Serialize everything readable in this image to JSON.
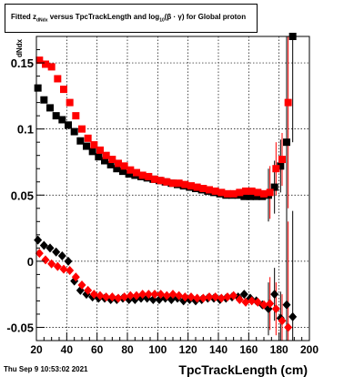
{
  "title": {
    "prefix": "Fitted  z",
    "sub1": "dNdx",
    "middle": "  versus TpcTrackLength and log",
    "sub2": "10",
    "suffix": "(β · γ) for Global proton"
  },
  "datestamp": "Thu Sep  9 10:53:02 2021",
  "colors": {
    "series_black": "#000000",
    "series_red": "#ff0000",
    "grid": "#000000"
  },
  "chart_data": {
    "type": "scatter",
    "title": "Fitted  zdNdx  versus TpcTrackLength and log10(β · γ) for Global proton",
    "xlabel": "TpcTrackLength (cm)",
    "ylabel": "dNdx",
    "xlim": [
      20,
      200
    ],
    "ylim": [
      -0.06,
      0.17
    ],
    "xticks": [
      20,
      40,
      60,
      80,
      100,
      120,
      140,
      160,
      180,
      200
    ],
    "yticks": [
      -0.05,
      0,
      0.05,
      0.1,
      0.15
    ],
    "ytick_labels": [
      "-0.05",
      "0",
      "0.05",
      "0.1",
      "0.15"
    ],
    "grid": true,
    "series": [
      {
        "marker": "square",
        "color": "#000000",
        "x": [
          21,
          25,
          29,
          33,
          37,
          41,
          45,
          49,
          53,
          57,
          61,
          65,
          69,
          73,
          77,
          81,
          85,
          89,
          93,
          97,
          101,
          105,
          109,
          113,
          117,
          121,
          125,
          129,
          133,
          137,
          141,
          145,
          149,
          153,
          157,
          161,
          165,
          169,
          173,
          177,
          181,
          185,
          189
        ],
        "y": [
          0.131,
          0.122,
          0.116,
          0.11,
          0.107,
          0.103,
          0.098,
          0.091,
          0.087,
          0.083,
          0.079,
          0.076,
          0.073,
          0.07,
          0.068,
          0.066,
          0.065,
          0.064,
          0.063,
          0.062,
          0.061,
          0.06,
          0.059,
          0.058,
          0.057,
          0.056,
          0.055,
          0.054,
          0.053,
          0.052,
          0.051,
          0.05,
          0.05,
          0.05,
          0.049,
          0.049,
          0.049,
          0.049,
          0.05,
          0.056,
          0.072,
          0.09,
          0.17
        ]
      },
      {
        "marker": "square",
        "color": "#ff0000",
        "x": [
          22,
          26,
          30,
          34,
          38,
          42,
          46,
          50,
          54,
          58,
          62,
          66,
          70,
          74,
          78,
          82,
          86,
          90,
          94,
          98,
          102,
          106,
          110,
          114,
          118,
          122,
          126,
          130,
          134,
          138,
          142,
          146,
          150,
          154,
          158,
          162,
          166,
          170,
          174,
          178,
          182,
          186
        ],
        "y": [
          0.152,
          0.149,
          0.147,
          0.138,
          0.13,
          0.12,
          0.11,
          0.1,
          0.093,
          0.088,
          0.084,
          0.08,
          0.077,
          0.074,
          0.072,
          0.069,
          0.067,
          0.065,
          0.064,
          0.062,
          0.061,
          0.06,
          0.059,
          0.059,
          0.058,
          0.057,
          0.056,
          0.055,
          0.054,
          0.053,
          0.052,
          0.051,
          0.051,
          0.052,
          0.053,
          0.053,
          0.052,
          0.051,
          0.052,
          0.07,
          0.077,
          0.12
        ]
      },
      {
        "marker": "diamond",
        "color": "#000000",
        "x": [
          21,
          25,
          29,
          33,
          37,
          41,
          45,
          49,
          53,
          57,
          61,
          65,
          69,
          73,
          77,
          81,
          85,
          89,
          93,
          97,
          101,
          105,
          109,
          113,
          117,
          121,
          125,
          129,
          133,
          137,
          141,
          145,
          149,
          153,
          157,
          161,
          165,
          169,
          173,
          177,
          181,
          185,
          189
        ],
        "y": [
          0.016,
          0.012,
          0.01,
          0.007,
          0.004,
          0.0,
          -0.015,
          -0.022,
          -0.025,
          -0.027,
          -0.028,
          -0.028,
          -0.029,
          -0.029,
          -0.028,
          -0.029,
          -0.029,
          -0.028,
          -0.028,
          -0.029,
          -0.029,
          -0.028,
          -0.029,
          -0.028,
          -0.03,
          -0.029,
          -0.03,
          -0.029,
          -0.028,
          -0.028,
          -0.029,
          -0.028,
          -0.027,
          -0.027,
          -0.025,
          -0.028,
          -0.03,
          -0.033,
          -0.036,
          -0.025,
          -0.043,
          -0.033,
          -0.042
        ]
      },
      {
        "marker": "diamond",
        "color": "#ff0000",
        "x": [
          22,
          26,
          30,
          34,
          38,
          42,
          46,
          50,
          54,
          58,
          62,
          66,
          70,
          74,
          78,
          82,
          86,
          90,
          94,
          98,
          102,
          106,
          110,
          114,
          118,
          122,
          126,
          130,
          134,
          138,
          142,
          146,
          150,
          154,
          158,
          162,
          166,
          170,
          174,
          178,
          182,
          186
        ],
        "y": [
          0.006,
          0.001,
          -0.002,
          -0.004,
          -0.006,
          -0.007,
          -0.012,
          -0.018,
          -0.022,
          -0.025,
          -0.026,
          -0.027,
          -0.027,
          -0.028,
          -0.027,
          -0.026,
          -0.026,
          -0.025,
          -0.025,
          -0.025,
          -0.025,
          -0.026,
          -0.025,
          -0.026,
          -0.027,
          -0.027,
          -0.028,
          -0.028,
          -0.027,
          -0.027,
          -0.028,
          -0.027,
          -0.026,
          -0.029,
          -0.031,
          -0.03,
          -0.031,
          -0.033,
          -0.032,
          -0.036,
          -0.045,
          -0.05
        ]
      }
    ]
  }
}
